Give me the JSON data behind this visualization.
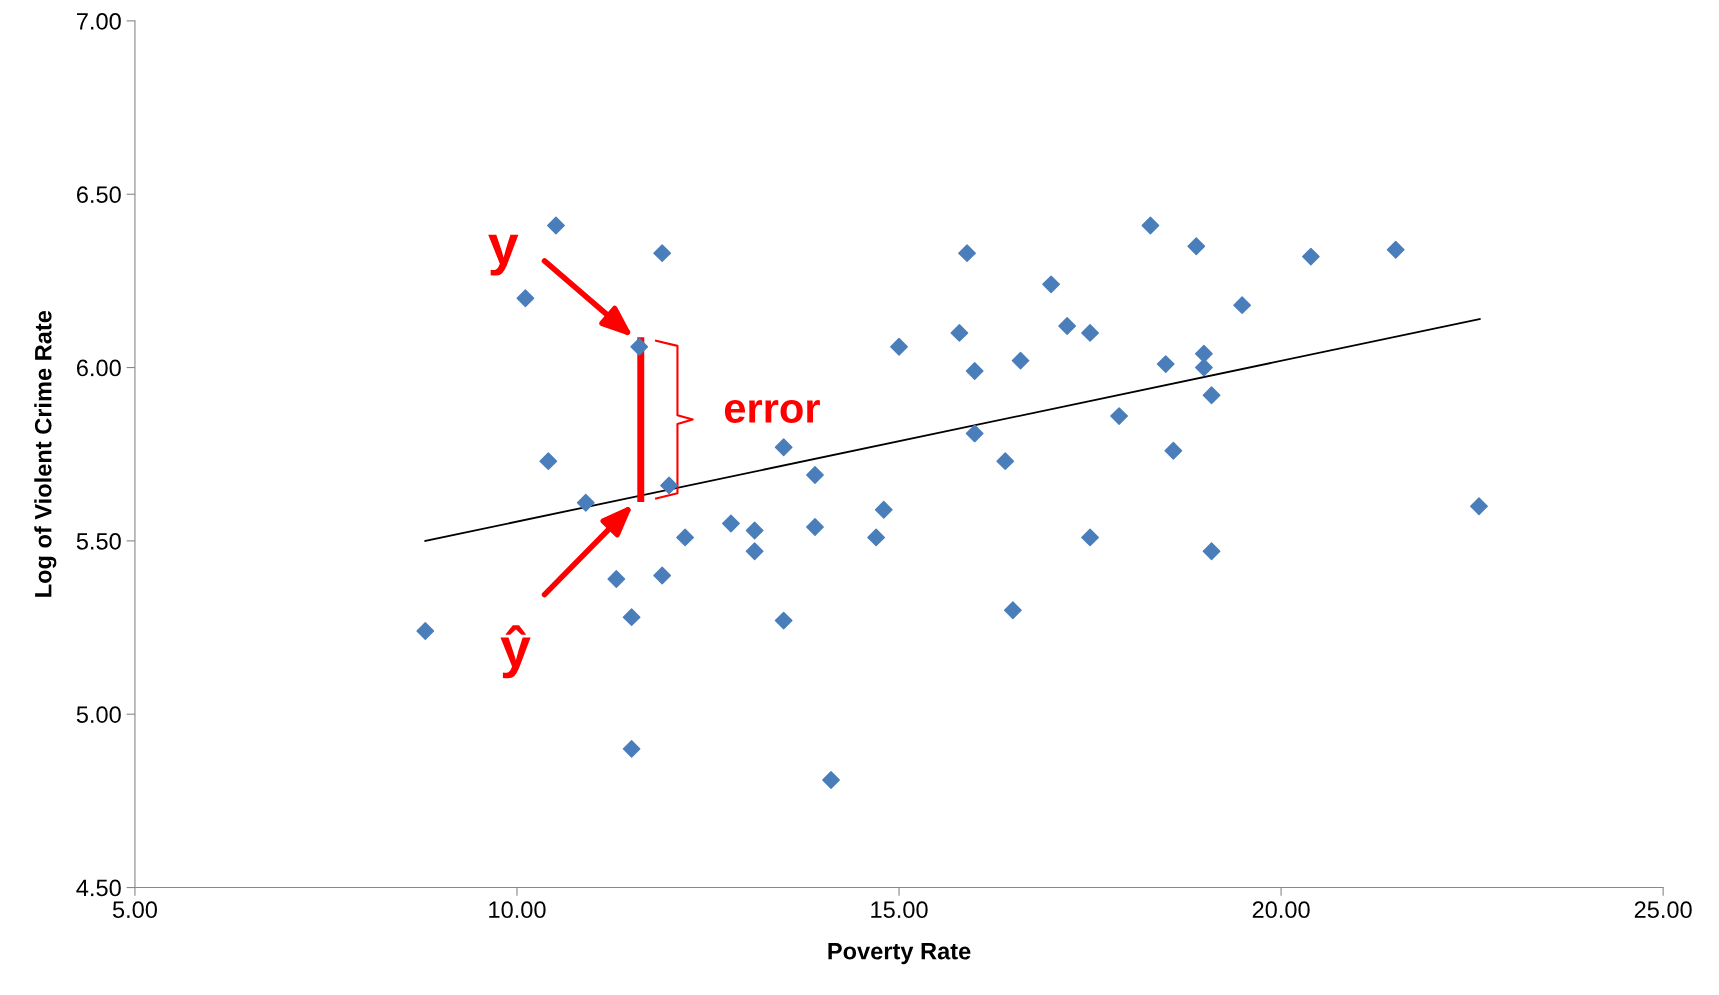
{
  "chart_data": {
    "type": "scatter",
    "xlabel": "Poverty Rate",
    "ylabel": "Log of Violent Crime Rate",
    "xlim": [
      5,
      25
    ],
    "xticks": [
      {
        "value": 5,
        "label": "5.00"
      },
      {
        "value": 10,
        "label": "10.00"
      },
      {
        "value": 15,
        "label": "15.00"
      },
      {
        "value": 20,
        "label": "20.00"
      },
      {
        "value": 25,
        "label": "25.00"
      }
    ],
    "ylim": [
      4.5,
      7
    ],
    "yticks": [
      {
        "value": 4.5,
        "label": "4.50"
      },
      {
        "value": 5,
        "label": "5.00"
      },
      {
        "value": 5.5,
        "label": "5.50"
      },
      {
        "value": 6,
        "label": "6.00"
      },
      {
        "value": 6.5,
        "label": "6.50"
      },
      {
        "value": 7,
        "label": "7.00"
      }
    ],
    "grid": false,
    "legend": false,
    "series": [
      {
        "color": "#4a7ebb",
        "marker": "diamond",
        "x": [
          8.8,
          10.11,
          10.51,
          10.41,
          10.9,
          11.3,
          11.5,
          11.5,
          11.6,
          11.9,
          11.9,
          11.99,
          12.2,
          12.8,
          13.11,
          13.11,
          13.49,
          13.49,
          13.9,
          13.9,
          14.11,
          14.7,
          14.8,
          15.0,
          15.79,
          15.89,
          15.99,
          15.99,
          16.39,
          16.49,
          16.59,
          16.99,
          17.2,
          17.5,
          17.5,
          17.88,
          18.29,
          18.49,
          18.59,
          18.89,
          18.99,
          18.99,
          19.09,
          19.09,
          19.49,
          20.39,
          21.5,
          22.59
        ],
        "values": [
          5.24,
          6.2,
          6.41,
          5.73,
          5.61,
          5.39,
          5.28,
          4.9,
          6.06,
          6.33,
          5.4,
          5.66,
          5.51,
          5.55,
          5.53,
          5.47,
          5.27,
          5.77,
          5.69,
          5.54,
          4.81,
          5.51,
          5.59,
          6.06,
          6.1,
          6.33,
          5.99,
          5.81,
          5.73,
          5.3,
          6.02,
          6.24,
          6.12,
          6.1,
          5.51,
          5.86,
          6.41,
          6.01,
          5.76,
          6.35,
          6.04,
          6.0,
          5.92,
          5.47,
          6.18,
          6.32,
          6.34,
          5.6
        ]
      },
      {
        "type": "line",
        "color": "#000000",
        "marker": "none",
        "line_style": "solid",
        "x": [
          8.8,
          22.6
        ],
        "values": [
          5.5,
          6.14
        ]
      }
    ],
    "annotations": [
      "y",
      "ŷ",
      "error"
    ]
  }
}
